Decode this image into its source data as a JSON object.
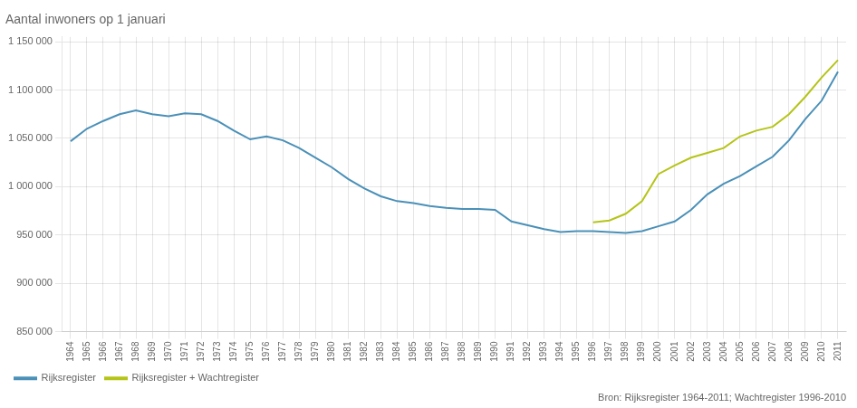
{
  "chart_data": {
    "type": "line",
    "title": "Aantal inwoners op 1 januari",
    "source": "Bron: Rijksregister 1964-2011; Wachtregister 1996-2010",
    "x": [
      1964,
      1965,
      1966,
      1967,
      1968,
      1969,
      1970,
      1971,
      1972,
      1973,
      1974,
      1975,
      1976,
      1977,
      1978,
      1979,
      1980,
      1981,
      1982,
      1983,
      1984,
      1985,
      1986,
      1987,
      1988,
      1989,
      1990,
      1991,
      1992,
      1993,
      1994,
      1995,
      1996,
      1997,
      1998,
      1999,
      2000,
      2001,
      2002,
      2003,
      2004,
      2005,
      2006,
      2007,
      2008,
      2009,
      2010,
      2011
    ],
    "series": [
      {
        "name": "Rijksregister",
        "color": "#4a90b8",
        "values": [
          1047000,
          1060000,
          1068000,
          1075000,
          1079000,
          1075000,
          1073000,
          1076000,
          1075000,
          1068000,
          1058000,
          1049000,
          1052000,
          1048000,
          1040000,
          1030000,
          1020000,
          1008000,
          998000,
          990000,
          985000,
          983000,
          980000,
          978000,
          977000,
          977000,
          976000,
          964000,
          960000,
          956000,
          953000,
          954000,
          954000,
          953000,
          952000,
          954000,
          959000,
          964000,
          976000,
          992000,
          1003000,
          1011000,
          1021000,
          1031000,
          1048000,
          1070000,
          1089000,
          1119000
        ]
      },
      {
        "name": "Rijksregister + Wachtregister",
        "color": "#b5c418",
        "values": [
          null,
          null,
          null,
          null,
          null,
          null,
          null,
          null,
          null,
          null,
          null,
          null,
          null,
          null,
          null,
          null,
          null,
          null,
          null,
          null,
          null,
          null,
          null,
          null,
          null,
          null,
          null,
          null,
          null,
          null,
          null,
          null,
          963000,
          965000,
          972000,
          985000,
          1013000,
          1022000,
          1030000,
          1035000,
          1040000,
          1052000,
          1058000,
          1062000,
          1075000,
          1093000,
          1113000,
          1131000
        ]
      }
    ],
    "xlim": [
      1963.5,
      2011.5
    ],
    "xticks": [
      1964,
      1965,
      1966,
      1967,
      1968,
      1969,
      1970,
      1971,
      1972,
      1973,
      1974,
      1975,
      1976,
      1977,
      1978,
      1979,
      1980,
      1981,
      1982,
      1983,
      1984,
      1985,
      1986,
      1987,
      1988,
      1989,
      1990,
      1991,
      1992,
      1993,
      1994,
      1995,
      1996,
      1997,
      1998,
      1999,
      2000,
      2001,
      2002,
      2003,
      2004,
      2005,
      2006,
      2007,
      2008,
      2009,
      2010,
      2011
    ],
    "ylim": [
      850000,
      1155000
    ],
    "yticks": [
      {
        "value": 850000,
        "label": "850 000"
      },
      {
        "value": 900000,
        "label": "900 000"
      },
      {
        "value": 950000,
        "label": "950 000"
      },
      {
        "value": 1000000,
        "label": "1 000 000"
      },
      {
        "value": 1050000,
        "label": "1 050 000"
      },
      {
        "value": 1100000,
        "label": "1 100 000"
      },
      {
        "value": 1150000,
        "label": "1 150 000"
      }
    ],
    "grid": true,
    "legend": "bottom"
  }
}
